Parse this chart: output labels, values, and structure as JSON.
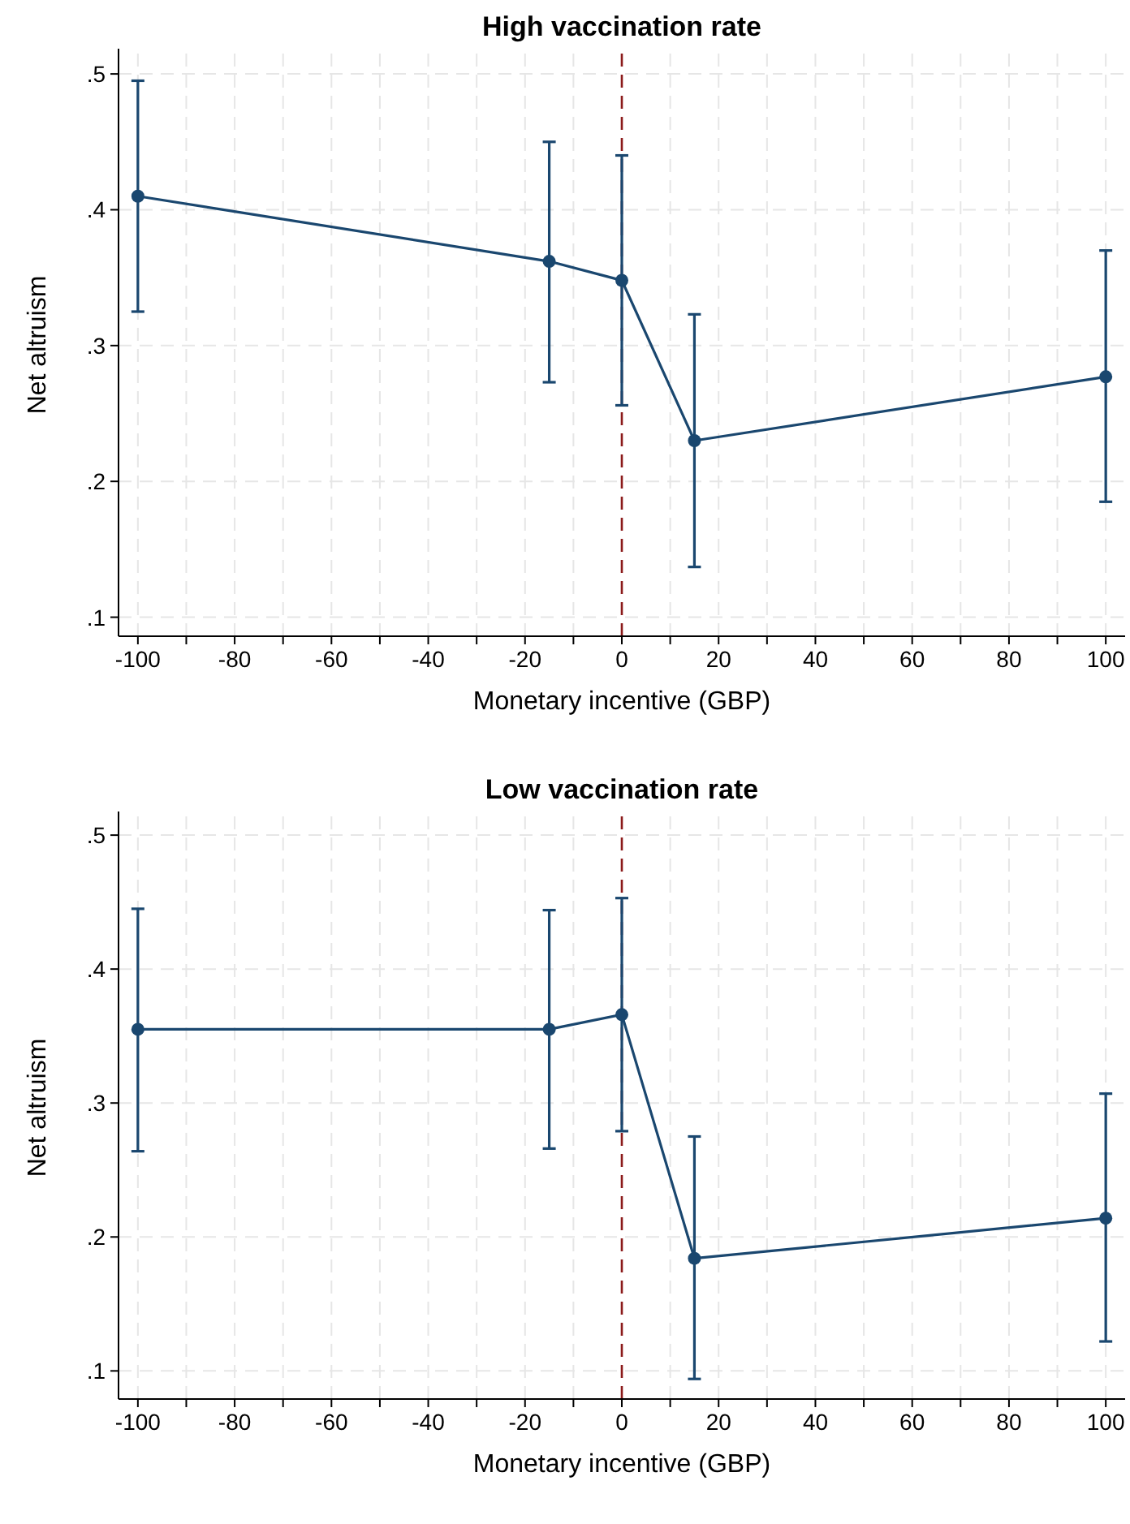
{
  "chart_data": [
    {
      "type": "line",
      "title": "High vaccination rate",
      "xlabel": "Monetary incentive (GBP)",
      "ylabel": "Net altruism",
      "x": [
        -100,
        -15,
        0,
        15,
        100
      ],
      "series": [
        {
          "color": "#1a476f",
          "values": [
            0.41,
            0.362,
            0.348,
            0.23,
            0.277
          ],
          "errors": [
            [
              0.325,
              0.495
            ],
            [
              0.273,
              0.45
            ],
            [
              0.256,
              0.44
            ],
            [
              0.137,
              0.323
            ],
            [
              0.185,
              0.37
            ]
          ]
        }
      ],
      "xlim": [
        -104,
        104
      ],
      "xticks": [
        -100,
        {
          "value": -90,
          "label": null
        },
        -80,
        {
          "value": -70,
          "label": null
        },
        -60,
        {
          "value": -50,
          "label": null
        },
        -40,
        {
          "value": -30,
          "label": null
        },
        -20,
        {
          "value": -10,
          "label": null
        },
        0,
        {
          "value": 10,
          "label": null
        },
        20,
        {
          "value": 30,
          "label": null
        },
        40,
        {
          "value": 50,
          "label": null
        },
        60,
        {
          "value": 70,
          "label": null
        },
        80,
        {
          "value": 90,
          "label": null
        },
        100
      ],
      "ylim": [
        0.086,
        0.515
      ],
      "yticks": [
        {
          "value": 0.1,
          "label": ".1"
        },
        {
          "value": 0.2,
          "label": ".2"
        },
        {
          "value": 0.3,
          "label": ".3"
        },
        {
          "value": 0.4,
          "label": ".4"
        },
        {
          "value": 0.5,
          "label": ".5"
        }
      ],
      "ref_lines": [
        {
          "axis": "x",
          "value": 0,
          "color": "#8b1a1a",
          "line_style": "dashed"
        }
      ],
      "grid": true,
      "marker": "circle",
      "line_style": "solid"
    },
    {
      "type": "line",
      "title": "Low vaccination rate",
      "xlabel": "Monetary incentive (GBP)",
      "ylabel": "Net altruism",
      "x": [
        -100,
        -15,
        0,
        15,
        100
      ],
      "series": [
        {
          "color": "#1a476f",
          "values": [
            0.355,
            0.355,
            0.366,
            0.184,
            0.214
          ],
          "errors": [
            [
              0.264,
              0.445
            ],
            [
              0.266,
              0.444
            ],
            [
              0.279,
              0.453
            ],
            [
              0.094,
              0.275
            ],
            [
              0.122,
              0.307
            ]
          ]
        }
      ],
      "xlim": [
        -104,
        104
      ],
      "xticks": [
        -100,
        {
          "value": -90,
          "label": null
        },
        -80,
        {
          "value": -70,
          "label": null
        },
        -60,
        {
          "value": -50,
          "label": null
        },
        -40,
        {
          "value": -30,
          "label": null
        },
        -20,
        {
          "value": -10,
          "label": null
        },
        0,
        {
          "value": 10,
          "label": null
        },
        20,
        {
          "value": 30,
          "label": null
        },
        40,
        {
          "value": 50,
          "label": null
        },
        60,
        {
          "value": 70,
          "label": null
        },
        80,
        {
          "value": 90,
          "label": null
        },
        100
      ],
      "ylim": [
        0.079,
        0.514
      ],
      "yticks": [
        {
          "value": 0.1,
          "label": ".1"
        },
        {
          "value": 0.2,
          "label": ".2"
        },
        {
          "value": 0.3,
          "label": ".3"
        },
        {
          "value": 0.4,
          "label": ".4"
        },
        {
          "value": 0.5,
          "label": ".5"
        }
      ],
      "ref_lines": [
        {
          "axis": "x",
          "value": 0,
          "color": "#8b1a1a",
          "line_style": "dashed"
        }
      ],
      "grid": true,
      "marker": "circle",
      "line_style": "solid"
    }
  ]
}
